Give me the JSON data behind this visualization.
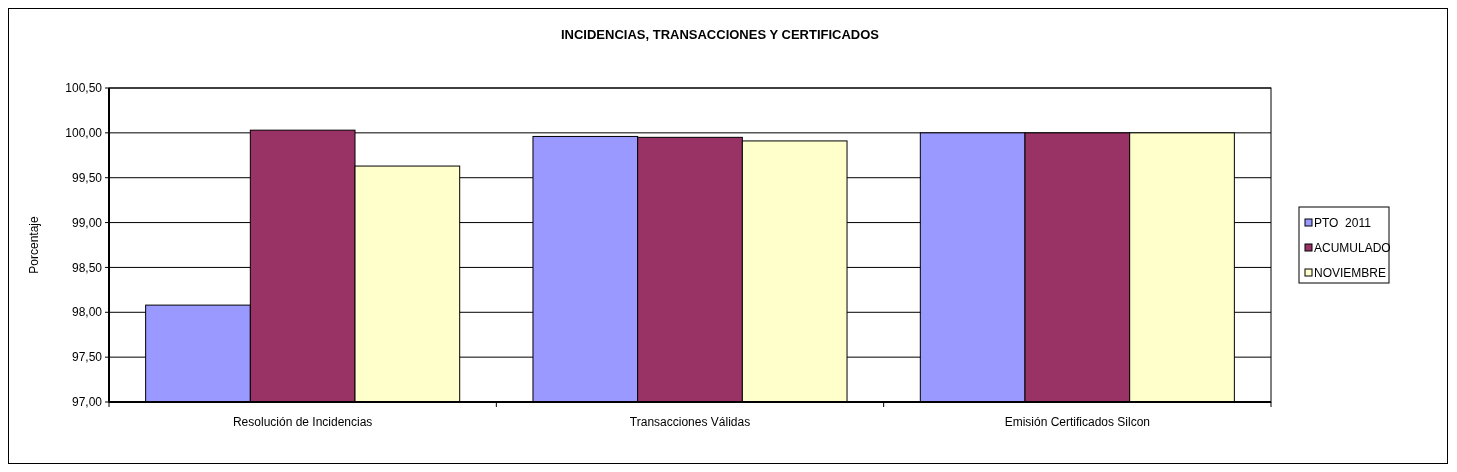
{
  "chart_data": {
    "type": "bar",
    "title": "INCIDENCIAS, TRANSACCIONES Y CERTIFICADOS",
    "ylabel": "Porcentaje",
    "categories": [
      "Resolución de Incidencias",
      "Transacciones Válidas",
      "Emisión Certificados Silcon"
    ],
    "series": [
      {
        "name": "PTO  2011",
        "color": "#9999ff",
        "values": [
          98.08,
          99.96,
          100.0
        ]
      },
      {
        "name": "ACUMULADO",
        "color": "#993366",
        "values": [
          100.03,
          99.95,
          100.0
        ]
      },
      {
        "name": "NOVIEMBRE",
        "color": "#ffffcc",
        "values": [
          99.63,
          99.91,
          100.0
        ]
      }
    ],
    "ylim": [
      97,
      100.5
    ],
    "yticks": [
      {
        "value": 97,
        "label": "97,00"
      },
      {
        "value": 97.5,
        "label": "97,50"
      },
      {
        "value": 98,
        "label": "98,00"
      },
      {
        "value": 98.5,
        "label": "98,50"
      },
      {
        "value": 99,
        "label": "99,00"
      },
      {
        "value": 99.5,
        "label": "99,50"
      },
      {
        "value": 100,
        "label": "100,00"
      },
      {
        "value": 100.5,
        "label": "100,50"
      }
    ],
    "grid": "y",
    "legend": "right"
  }
}
